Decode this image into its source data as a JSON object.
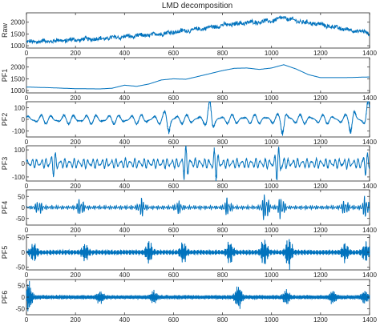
{
  "chart_data": {
    "type": "line",
    "title": "LMD decomposition",
    "color": "#0072BD",
    "xlim": [
      0,
      1400
    ],
    "xticks": [
      0,
      200,
      400,
      600,
      800,
      1000,
      1200,
      1400
    ],
    "panels": [
      {
        "name": "Raw",
        "kind": "raw",
        "ylim": [
          900,
          2400
        ],
        "yticks": [
          1000,
          1500,
          2000
        ],
        "trend": [
          [
            0,
            1150
          ],
          [
            100,
            1200
          ],
          [
            200,
            1250
          ],
          [
            300,
            1300
          ],
          [
            400,
            1380
          ],
          [
            500,
            1450
          ],
          [
            600,
            1580
          ],
          [
            700,
            1700
          ],
          [
            800,
            1870
          ],
          [
            900,
            1980
          ],
          [
            1000,
            2050
          ],
          [
            1050,
            2200
          ],
          [
            1100,
            2050
          ],
          [
            1200,
            1900
          ],
          [
            1300,
            1700
          ],
          [
            1400,
            1550
          ]
        ]
      },
      {
        "name": "PF1",
        "kind": "trend",
        "ylim": [
          900,
          2400
        ],
        "yticks": [
          1000,
          1500,
          2000
        ],
        "trend": [
          [
            0,
            1150
          ],
          [
            100,
            1120
          ],
          [
            200,
            1080
          ],
          [
            300,
            1070
          ],
          [
            350,
            1100
          ],
          [
            400,
            1230
          ],
          [
            450,
            1180
          ],
          [
            500,
            1280
          ],
          [
            550,
            1450
          ],
          [
            600,
            1500
          ],
          [
            650,
            1480
          ],
          [
            700,
            1600
          ],
          [
            800,
            1850
          ],
          [
            850,
            1950
          ],
          [
            900,
            1960
          ],
          [
            950,
            1900
          ],
          [
            1000,
            1960
          ],
          [
            1050,
            2100
          ],
          [
            1100,
            1920
          ],
          [
            1150,
            1680
          ],
          [
            1200,
            1550
          ],
          [
            1300,
            1550
          ],
          [
            1400,
            1580
          ]
        ]
      },
      {
        "name": "PF2",
        "kind": "osc",
        "ylim": [
          -150,
          150
        ],
        "yticks": [
          -100,
          0,
          100
        ],
        "base": 40,
        "periods": [
          46,
          31
        ],
        "bursts": [
          [
            580,
            140
          ],
          [
            750,
            130
          ],
          [
            1050,
            120
          ],
          [
            1330,
            100
          ],
          [
            1395,
            150
          ]
        ]
      },
      {
        "name": "PF3",
        "kind": "osc",
        "ylim": [
          -130,
          130
        ],
        "yticks": [
          -100,
          0,
          100
        ],
        "base": 35,
        "periods": [
          19,
          13
        ],
        "bursts": [
          [
            110,
            70
          ],
          [
            650,
            110
          ],
          [
            770,
            90
          ],
          [
            1030,
            120
          ],
          [
            1380,
            70
          ]
        ]
      },
      {
        "name": "PF4",
        "kind": "osc",
        "ylim": [
          -80,
          80
        ],
        "yticks": [
          -50,
          0,
          50
        ],
        "base": 8,
        "periods": [
          8.5,
          6.1
        ],
        "bursts": [
          [
            50,
            25
          ],
          [
            220,
            35
          ],
          [
            470,
            35
          ],
          [
            620,
            22
          ],
          [
            820,
            32
          ],
          [
            975,
            60
          ],
          [
            1040,
            45
          ],
          [
            1300,
            30
          ],
          [
            1385,
            45
          ]
        ]
      },
      {
        "name": "PF5",
        "kind": "osc",
        "ylim": [
          -60,
          60
        ],
        "yticks": [
          -50,
          0,
          50
        ],
        "base": 8,
        "periods": [
          4.3,
          3.2
        ],
        "bursts": [
          [
            30,
            25
          ],
          [
            240,
            25
          ],
          [
            500,
            35
          ],
          [
            640,
            30
          ],
          [
            830,
            33
          ],
          [
            970,
            40
          ],
          [
            1070,
            50
          ],
          [
            1300,
            28
          ],
          [
            1385,
            30
          ]
        ]
      },
      {
        "name": "PF6",
        "kind": "osc",
        "ylim": [
          -75,
          75
        ],
        "yticks": [
          -50,
          0,
          50
        ],
        "base": 9,
        "periods": [
          2.3,
          1.7
        ],
        "bursts": [
          [
            8,
            60
          ],
          [
            300,
            20
          ],
          [
            520,
            20
          ],
          [
            865,
            45
          ],
          [
            1060,
            22
          ],
          [
            1250,
            22
          ],
          [
            1380,
            20
          ]
        ]
      }
    ]
  }
}
